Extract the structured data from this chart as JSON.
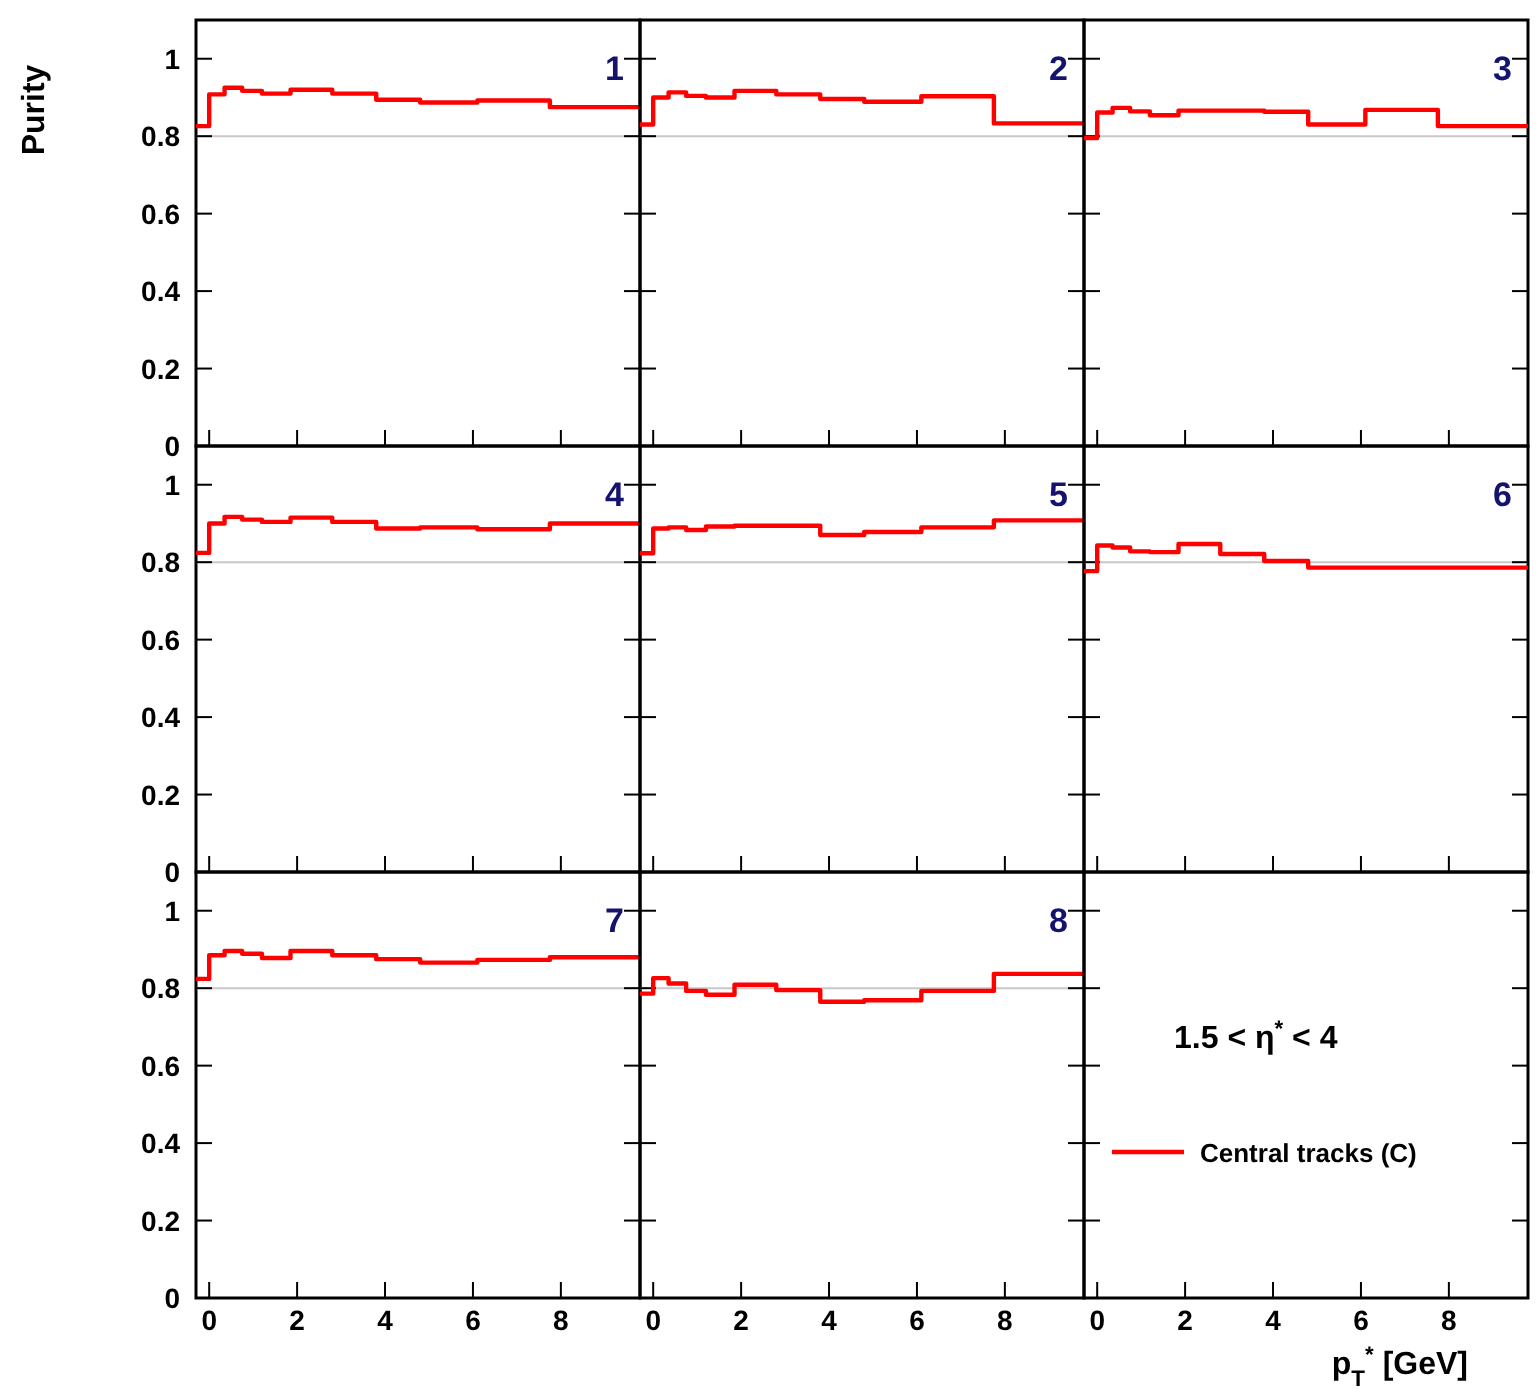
{
  "chart_data": [
    {
      "type": "histogram",
      "ylabel": "Purity",
      "bins": [
        -0.3,
        0,
        0.35,
        0.75,
        1.2,
        1.85,
        2.8,
        3.8,
        4.8,
        6.1,
        7.75,
        9.8
      ],
      "xlim": [
        -0.3,
        9.8
      ],
      "ylim": [
        0,
        1.1
      ],
      "xticks": [
        0,
        2,
        4,
        6,
        8
      ],
      "yticks": [
        0,
        0.2,
        0.4,
        0.6,
        0.8,
        1
      ],
      "tick_labels": "y",
      "annotations": [
        "1"
      ],
      "ref_lines": [
        {
          "axis": "y",
          "value": 0.8,
          "color": "#c8c8c8"
        }
      ],
      "series": [
        {
          "color": "#ff0000",
          "values": [
            0.826,
            0.908,
            0.925,
            0.917,
            0.91,
            0.92,
            0.91,
            0.894,
            0.887,
            0.892,
            0.875
          ]
        }
      ]
    },
    {
      "type": "histogram",
      "bins": [
        -0.3,
        0,
        0.35,
        0.75,
        1.2,
        1.85,
        2.8,
        3.8,
        4.8,
        6.1,
        7.75,
        9.8
      ],
      "xlim": [
        -0.3,
        9.8
      ],
      "ylim": [
        0,
        1.1
      ],
      "xticks": [
        0,
        2,
        4,
        6,
        8
      ],
      "yticks": [
        0,
        0.2,
        0.4,
        0.6,
        0.8,
        1
      ],
      "tick_labels": false,
      "annotations": [
        "2"
      ],
      "ref_lines": [
        {
          "axis": "y",
          "value": 0.8,
          "color": "#c8c8c8"
        }
      ],
      "series": [
        {
          "color": "#ff0000",
          "values": [
            0.83,
            0.9,
            0.913,
            0.904,
            0.9,
            0.917,
            0.908,
            0.896,
            0.889,
            0.903,
            0.833
          ]
        }
      ]
    },
    {
      "type": "histogram",
      "bins": [
        -0.3,
        0,
        0.35,
        0.75,
        1.2,
        1.85,
        2.8,
        3.8,
        4.8,
        6.1,
        7.75,
        9.8
      ],
      "xlim": [
        -0.3,
        9.8
      ],
      "ylim": [
        0,
        1.1
      ],
      "xticks": [
        0,
        2,
        4,
        6,
        8
      ],
      "yticks": [
        0,
        0.2,
        0.4,
        0.6,
        0.8,
        1
      ],
      "tick_labels": false,
      "annotations": [
        "3"
      ],
      "ref_lines": [
        {
          "axis": "y",
          "value": 0.8,
          "color": "#c8c8c8"
        }
      ],
      "series": [
        {
          "color": "#ff0000",
          "values": [
            0.795,
            0.861,
            0.873,
            0.864,
            0.854,
            0.866,
            0.866,
            0.863,
            0.83,
            0.868,
            0.826
          ]
        }
      ]
    },
    {
      "type": "histogram",
      "bins": [
        -0.3,
        0,
        0.35,
        0.75,
        1.2,
        1.85,
        2.8,
        3.8,
        4.8,
        6.1,
        7.75,
        9.8
      ],
      "xlim": [
        -0.3,
        9.8
      ],
      "ylim": [
        0,
        1.1
      ],
      "xticks": [
        0,
        2,
        4,
        6,
        8
      ],
      "yticks": [
        0,
        0.2,
        0.4,
        0.6,
        0.8,
        1
      ],
      "tick_labels": "y",
      "annotations": [
        "4"
      ],
      "ref_lines": [
        {
          "axis": "y",
          "value": 0.8,
          "color": "#c8c8c8"
        }
      ],
      "series": [
        {
          "color": "#ff0000",
          "values": [
            0.824,
            0.9,
            0.917,
            0.91,
            0.904,
            0.915,
            0.904,
            0.887,
            0.89,
            0.885,
            0.9
          ]
        }
      ]
    },
    {
      "type": "histogram",
      "bins": [
        -0.3,
        0,
        0.35,
        0.75,
        1.2,
        1.85,
        2.8,
        3.8,
        4.8,
        6.1,
        7.75,
        9.8
      ],
      "xlim": [
        -0.3,
        9.8
      ],
      "ylim": [
        0,
        1.1
      ],
      "xticks": [
        0,
        2,
        4,
        6,
        8
      ],
      "yticks": [
        0,
        0.2,
        0.4,
        0.6,
        0.8,
        1
      ],
      "tick_labels": false,
      "annotations": [
        "5"
      ],
      "ref_lines": [
        {
          "axis": "y",
          "value": 0.8,
          "color": "#c8c8c8"
        }
      ],
      "series": [
        {
          "color": "#ff0000",
          "values": [
            0.823,
            0.887,
            0.89,
            0.883,
            0.892,
            0.894,
            0.894,
            0.87,
            0.878,
            0.89,
            0.908
          ]
        }
      ]
    },
    {
      "type": "histogram",
      "bins": [
        -0.3,
        0,
        0.35,
        0.75,
        1.2,
        1.85,
        2.8,
        3.8,
        4.8,
        6.1,
        7.75,
        9.8
      ],
      "xlim": [
        -0.3,
        9.8
      ],
      "ylim": [
        0,
        1.1
      ],
      "xticks": [
        0,
        2,
        4,
        6,
        8
      ],
      "yticks": [
        0,
        0.2,
        0.4,
        0.6,
        0.8,
        1
      ],
      "tick_labels": false,
      "annotations": [
        "6"
      ],
      "ref_lines": [
        {
          "axis": "y",
          "value": 0.8,
          "color": "#c8c8c8"
        }
      ],
      "series": [
        {
          "color": "#ff0000",
          "values": [
            0.777,
            0.843,
            0.838,
            0.828,
            0.826,
            0.847,
            0.821,
            0.803,
            0.786,
            0.786,
            0.786
          ]
        }
      ]
    },
    {
      "type": "histogram",
      "bins": [
        -0.3,
        0,
        0.35,
        0.75,
        1.2,
        1.85,
        2.8,
        3.8,
        4.8,
        6.1,
        7.75,
        9.8
      ],
      "xlim": [
        -0.3,
        9.8
      ],
      "ylim": [
        0,
        1.1
      ],
      "xticks": [
        0,
        2,
        4,
        6,
        8
      ],
      "yticks": [
        0,
        0.2,
        0.4,
        0.6,
        0.8,
        1
      ],
      "annotations": [
        "7"
      ],
      "ref_lines": [
        {
          "axis": "y",
          "value": 0.8,
          "color": "#c8c8c8"
        }
      ],
      "series": [
        {
          "color": "#ff0000",
          "values": [
            0.824,
            0.885,
            0.896,
            0.889,
            0.878,
            0.896,
            0.885,
            0.875,
            0.866,
            0.873,
            0.88
          ]
        }
      ]
    },
    {
      "type": "histogram",
      "bins": [
        -0.3,
        0,
        0.35,
        0.75,
        1.2,
        1.85,
        2.8,
        3.8,
        4.8,
        6.1,
        7.75,
        9.8
      ],
      "xlim": [
        -0.3,
        9.8
      ],
      "ylim": [
        0,
        1.1
      ],
      "xticks": [
        0,
        2,
        4,
        6,
        8
      ],
      "yticks": [
        0,
        0.2,
        0.4,
        0.6,
        0.8,
        1
      ],
      "tick_labels": "x",
      "annotations": [
        "8"
      ],
      "ref_lines": [
        {
          "axis": "y",
          "value": 0.8,
          "color": "#c8c8c8"
        }
      ],
      "legend": "right",
      "series": [
        {
          "name": "Central tracks (C)",
          "color": "#ff0000",
          "values": [
            0.786,
            0.826,
            0.812,
            0.793,
            0.783,
            0.809,
            0.795,
            0.765,
            0.769,
            0.793,
            0.837
          ]
        }
      ]
    },
    {
      "type": "histogram",
      "xlabel": "p$_{T}$$^{*}$  [GeV]",
      "xlim": [
        -0.3,
        9.8
      ],
      "ylim": [
        0,
        1.1
      ],
      "xticks": [
        0,
        2,
        4,
        6,
        8
      ],
      "yticks": [
        0,
        0.2,
        0.4,
        0.6,
        0.8,
        1
      ],
      "tick_labels": "x",
      "annotations": [
        "1.5 < η$^{*}$ < 4"
      ]
    }
  ]
}
